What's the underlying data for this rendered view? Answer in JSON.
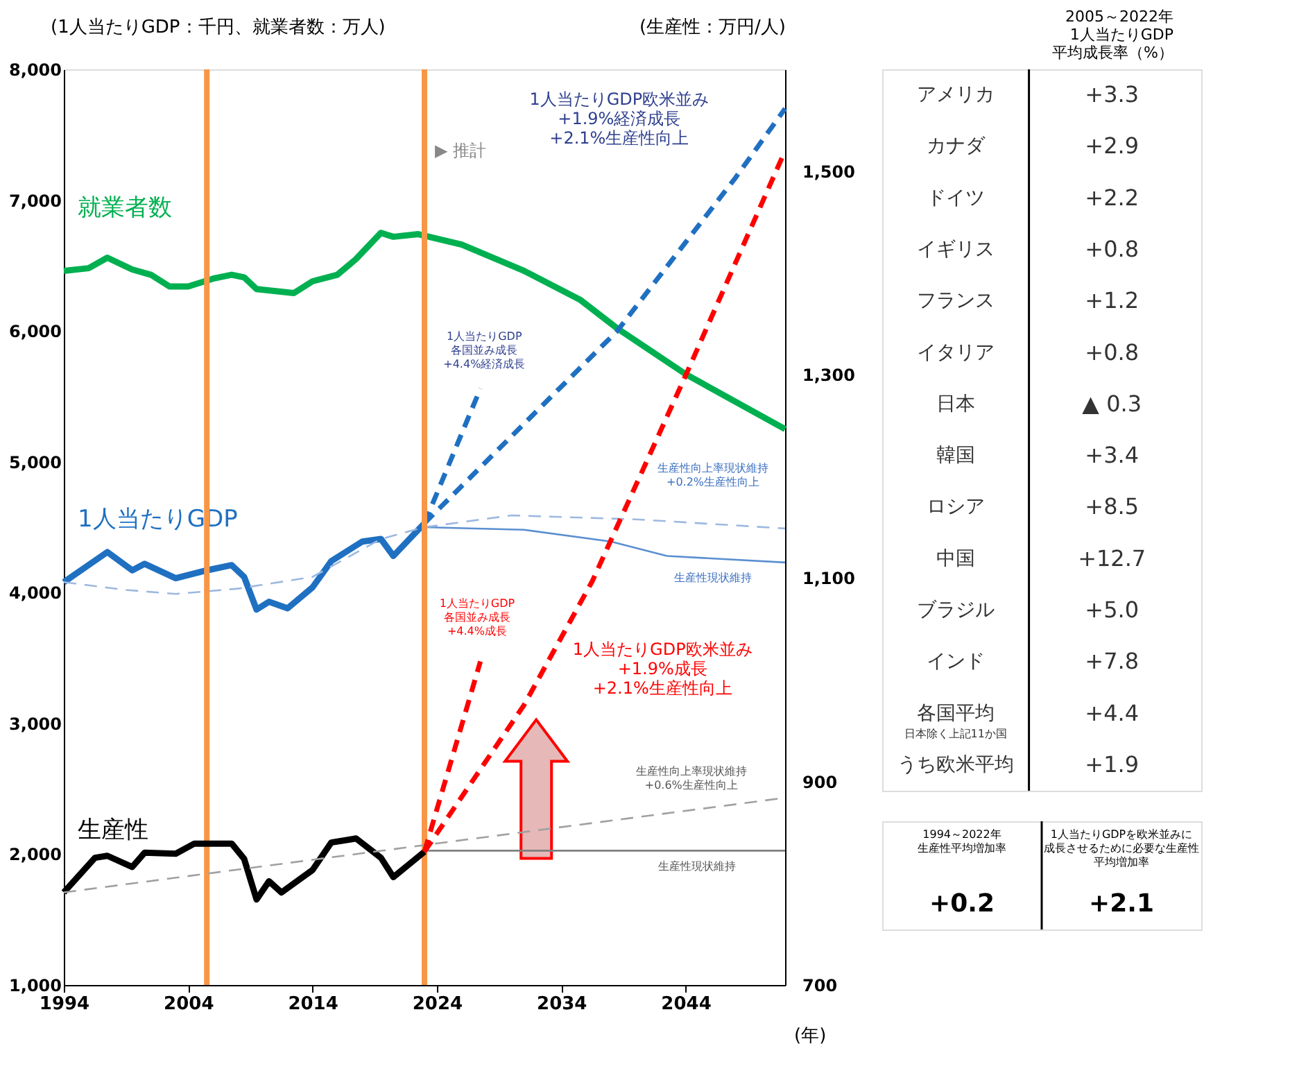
{
  "chart_data": [
    {
      "type": "line",
      "xlabel": "(年)",
      "ylabel": "(1人当たりGDP：千円、就業者数：万人)",
      "y2label": "(生産性：万円/人)",
      "xlim": [
        1994,
        2052
      ],
      "xticks": [
        1994,
        2004,
        2014,
        2024,
        2034,
        2044
      ],
      "ylim": [
        1000,
        8000
      ],
      "yticks": [
        {
          "value": 1000,
          "label": "1,000"
        },
        {
          "value": 2000,
          "label": "2,000"
        },
        {
          "value": 3000,
          "label": "3,000"
        },
        {
          "value": 4000,
          "label": "4,000"
        },
        {
          "value": 5000,
          "label": "5,000"
        },
        {
          "value": 6000,
          "label": "6,000"
        },
        {
          "value": 7000,
          "label": "7,000"
        },
        {
          "value": 8000,
          "label": "8,000"
        }
      ],
      "y2lim": [
        700,
        1600
      ],
      "y2ticks": [
        700,
        900,
        {
          "value": 1100,
          "label": "1,100"
        },
        {
          "value": 1300,
          "label": "1,300"
        },
        {
          "value": 1500,
          "label": "1,500"
        }
      ],
      "grid": false,
      "marker": "none",
      "series": [
        {
          "name": "就業者数",
          "color": "#00b050",
          "line_style": "solid",
          "x": [
            1994,
            1996,
            1997.5,
            1999.5,
            2001,
            2002.5,
            2004,
            2006,
            2007.5,
            2008.5,
            2009.5,
            2012.5,
            2014,
            2016,
            2017.5,
            2019.5,
            2020.5,
            2022.5,
            2026,
            2031,
            2035.5,
            2038.5,
            2044,
            2052
          ],
          "values": [
            6460,
            6480,
            6560,
            6470,
            6430,
            6340,
            6340,
            6400,
            6430,
            6410,
            6320,
            6290,
            6380,
            6430,
            6550,
            6750,
            6720,
            6740,
            6660,
            6460,
            6240,
            6020,
            5670,
            5250
          ]
        },
        {
          "name": "1人当たりGDP",
          "color": "#1f70c1",
          "line_style": "solid",
          "x": [
            1994,
            1997.5,
            1999.5,
            2000.5,
            2003,
            2005.5,
            2007.5,
            2008.5,
            2009.5,
            2010.5,
            2012,
            2014,
            2015.5,
            2018,
            2019.5,
            2020.5,
            2023
          ],
          "values": [
            4080,
            4310,
            4170,
            4220,
            4110,
            4170,
            4210,
            4120,
            3870,
            3930,
            3880,
            4040,
            4240,
            4390,
            4410,
            4280,
            4530
          ]
        },
        {
          "color": "#1f70c1",
          "line_style": "dashed",
          "x": [
            2023,
            2027.5
          ],
          "values": [
            4530,
            5560
          ]
        },
        {
          "color": "#1f70c1",
          "line_style": "dashed",
          "x": [
            2023,
            2031,
            2038.5,
            2048,
            2052
          ],
          "values": [
            4530,
            5290,
            6000,
            7170,
            7700
          ]
        },
        {
          "color": "#5b8fd0",
          "line_style": "solid",
          "x": [
            2023,
            2031,
            2038,
            2042.5,
            2052
          ],
          "values": [
            4500,
            4480,
            4390,
            4280,
            4230
          ]
        },
        {
          "color": "#9db8e0",
          "line_style": "dashed",
          "x": [
            1994,
            1999,
            2003,
            2008,
            2014,
            2019.5,
            2023,
            2030,
            2040,
            2052
          ],
          "values": [
            4080,
            4020,
            3990,
            4030,
            4120,
            4410,
            4500,
            4590,
            4560,
            4490
          ]
        },
        {
          "name": "生産性",
          "color": "#000000",
          "axis": "y2",
          "line_style": "solid",
          "x": [
            1994,
            1996.5,
            1997.5,
            1999.5,
            2000.5,
            2003,
            2004.5,
            2007.5,
            2008.5,
            2009.5,
            2010.5,
            2011.5,
            2014,
            2015.5,
            2017.5,
            2019.5,
            2020.5,
            2023
          ],
          "values": [
            791,
            825,
            827,
            816,
            830,
            829,
            839,
            839,
            824,
            784,
            802,
            791,
            813,
            840,
            844,
            825,
            806,
            831
          ]
        },
        {
          "color": "#7f7f7f",
          "axis": "y2",
          "line_style": "solid",
          "x": [
            2023,
            2052
          ],
          "values": [
            832,
            832
          ]
        },
        {
          "color": "#a0a0a0",
          "axis": "y2",
          "line_style": "dashed",
          "x": [
            1994,
            2052
          ],
          "values": [
            791,
            884
          ]
        },
        {
          "color": "#ff0000",
          "axis": "y2",
          "line_style": "dashed",
          "x": [
            2023,
            2027.5
          ],
          "values": [
            831,
            1018
          ]
        },
        {
          "color": "#ff0000",
          "axis": "y2",
          "line_style": "dashed",
          "x": [
            2023,
            2031,
            2036.5,
            2044,
            2052
          ],
          "values": [
            831,
            975,
            1097,
            1299,
            1520
          ]
        }
      ],
      "ref_lines": [
        {
          "axis": "x",
          "value": 2005.5,
          "color": "#f79646"
        },
        {
          "axis": "x",
          "value": 2023,
          "color": "#f79646"
        }
      ],
      "annotations": [
        "1人当たりGDP欧米並み\n+1.9%経済成長\n+2.1%生産性向上",
        "▶ 推計",
        "1人当たりGDP\n各国並み成長\n+4.4%経済成長",
        "生産性向上率現状維持\n+0.2%生産性向上",
        "生産性現状維持",
        "1人当たりGDP\n各国並み成長\n+4.4%成長",
        "1人当たりGDP欧米並み\n+1.9%成長\n+2.1%生産性向上",
        "生産性向上率現状維持\n+0.6%生産性向上",
        "生産性現状維持"
      ]
    },
    {
      "type": "other",
      "title": "2005～2022年\n1人当たりGDP\n平均成長率（%）",
      "categories": [
        "アメリカ",
        "カナダ",
        "ドイツ",
        "イギリス",
        "フランス",
        "イタリア",
        "日本",
        "韓国",
        "ロシア",
        "中国",
        "ブラジル",
        "インド",
        "各国平均",
        "うち欧米平均"
      ],
      "value_labels": [
        "+3.3",
        "+2.9",
        "+2.2",
        "+0.8",
        "+1.2",
        "+0.8",
        "▲ 0.3",
        "+3.4",
        "+8.5",
        "+12.7",
        "+5.0",
        "+7.8",
        "+4.4",
        "+1.9"
      ],
      "annotations": [
        "日本除く上記11か国"
      ]
    },
    {
      "type": "other",
      "categories": [
        "1994～2022年生産性平均増加率",
        "1人当たりGDPを欧米並みに成長させるために必要な生産性平均増加率"
      ],
      "value_labels": [
        "+0.2",
        "+2.1"
      ]
    }
  ]
}
